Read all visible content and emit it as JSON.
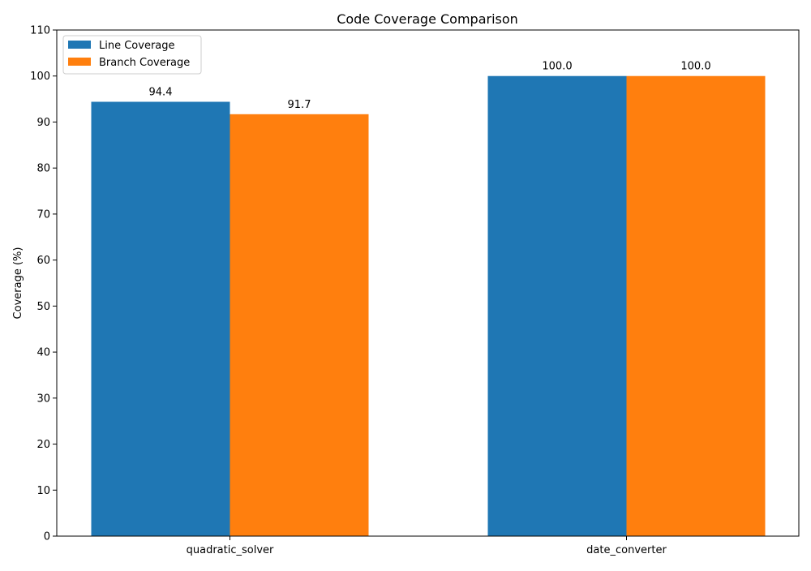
{
  "chart_data": {
    "type": "bar",
    "title": "Code Coverage Comparison",
    "xlabel": "",
    "ylabel": "Coverage (%)",
    "ylim": [
      0,
      110
    ],
    "yticks": [
      0,
      10,
      20,
      30,
      40,
      50,
      60,
      70,
      80,
      90,
      100,
      110
    ],
    "categories": [
      "quadratic_solver",
      "date_converter"
    ],
    "series": [
      {
        "name": "Line Coverage",
        "values": [
          94.4,
          100.0
        ],
        "labels": [
          "94.4",
          "100.0"
        ],
        "color": "#1f77b4"
      },
      {
        "name": "Branch Coverage",
        "values": [
          91.7,
          100.0
        ],
        "labels": [
          "91.7",
          "100.0"
        ],
        "color": "#ff7f0e"
      }
    ],
    "grid": false,
    "legend_position": "top-left"
  }
}
